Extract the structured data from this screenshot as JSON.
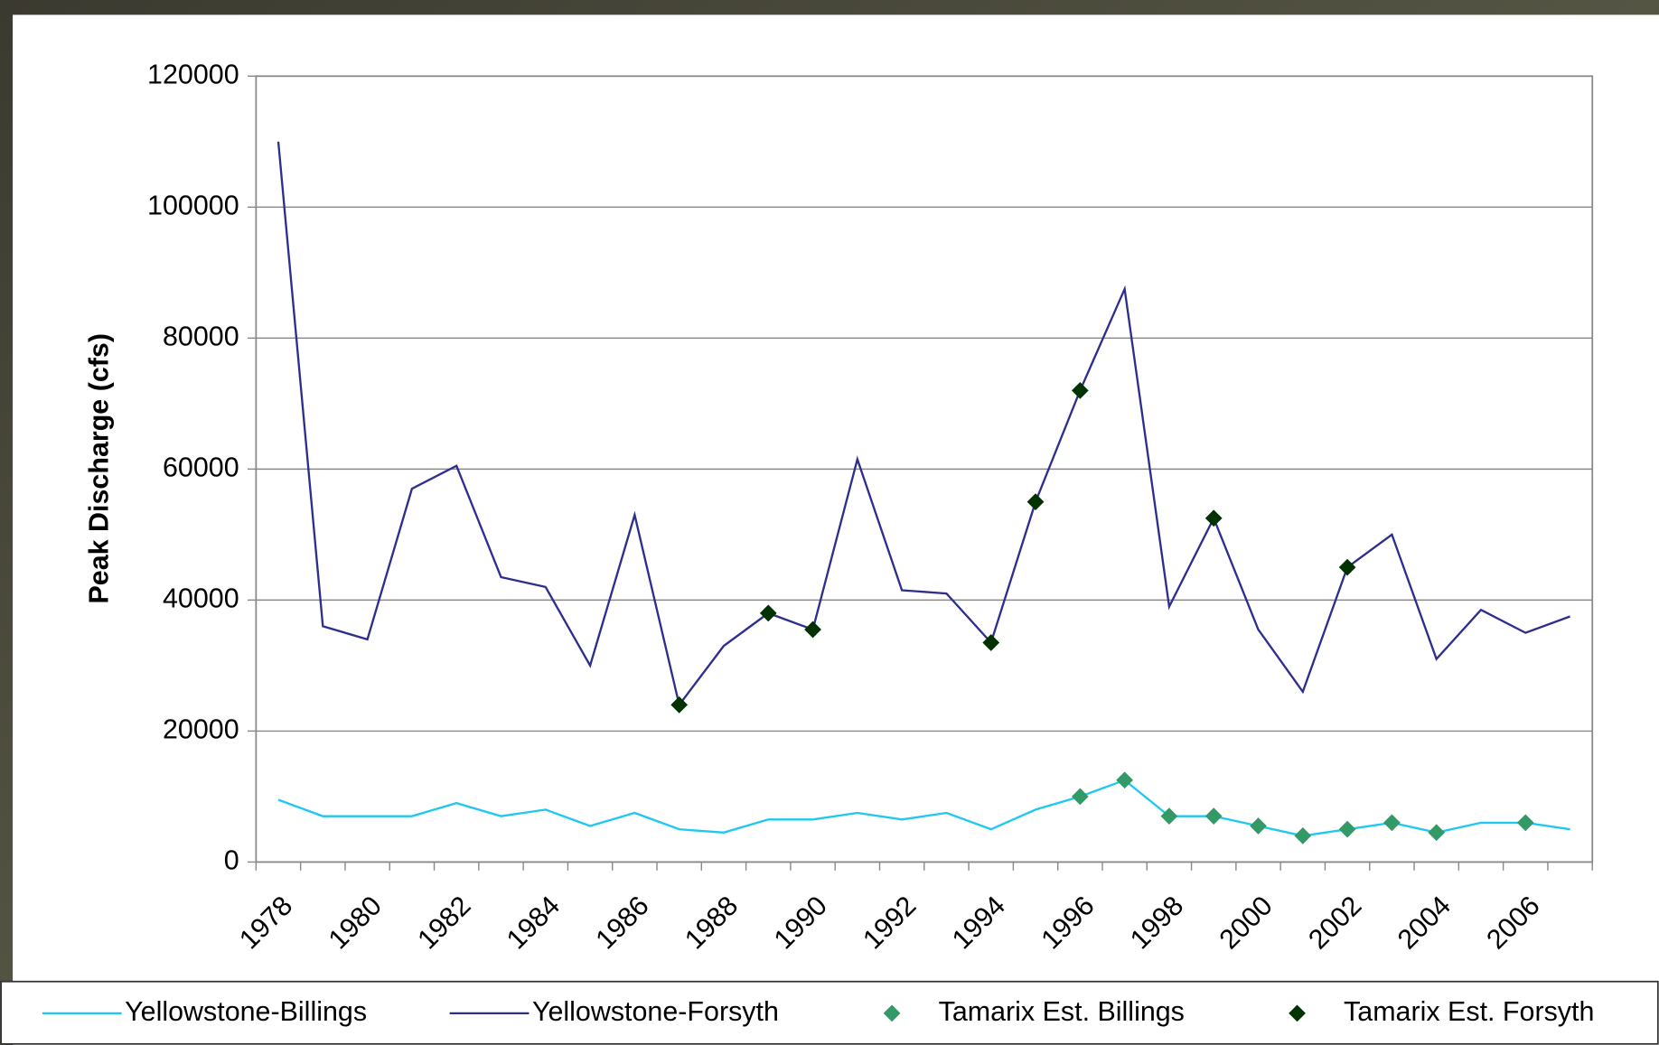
{
  "chart_data": {
    "type": "line",
    "y_label": "Peak Discharge (cfs)",
    "categories": [
      "1978",
      null,
      "1980",
      null,
      "1982",
      null,
      "1984",
      null,
      "1986",
      null,
      "1988",
      null,
      "1990",
      null,
      "1992",
      null,
      "1994",
      null,
      "1996",
      null,
      "1998",
      null,
      "2000",
      null,
      "2002",
      null,
      "2004",
      null,
      "2006",
      null
    ],
    "ylim": [
      0,
      120000
    ],
    "yticks": [
      0,
      20000,
      40000,
      60000,
      80000,
      100000,
      120000
    ],
    "grid": true,
    "series": [
      {
        "name": "Yellowstone-Billings",
        "color": "#1ec8f0",
        "style": "line",
        "values": [
          9500,
          7000,
          7000,
          7000,
          9000,
          7000,
          8000,
          5500,
          7500,
          5000,
          4500,
          6500,
          6500,
          7500,
          6500,
          7500,
          5000,
          8000,
          10000,
          12500,
          7000,
          7000,
          5500,
          4000,
          5000,
          6000,
          4500,
          6000,
          6000,
          5000
        ]
      },
      {
        "name": "Yellowstone-Forsyth",
        "color": "#2e2e8f",
        "style": "line",
        "values": [
          110000,
          36000,
          34000,
          57000,
          60500,
          43500,
          42000,
          30000,
          53000,
          24000,
          33000,
          38000,
          35500,
          61500,
          41500,
          41000,
          33500,
          55000,
          72000,
          87500,
          39000,
          52500,
          35500,
          26000,
          45000,
          50000,
          31000,
          38500,
          35000,
          37500
        ]
      },
      {
        "name": "Tamarix Est. Billings",
        "color": "#339966",
        "style": "marker",
        "values": [
          null,
          null,
          null,
          null,
          null,
          null,
          null,
          null,
          null,
          null,
          null,
          null,
          null,
          null,
          null,
          null,
          null,
          null,
          10000,
          12500,
          7000,
          7000,
          5500,
          4000,
          5000,
          6000,
          4500,
          null,
          6000,
          null
        ]
      },
      {
        "name": "Tamarix Est. Forsyth",
        "color": "#003300",
        "style": "marker",
        "values": [
          null,
          null,
          null,
          null,
          null,
          null,
          null,
          null,
          null,
          24000,
          null,
          38000,
          35500,
          null,
          null,
          null,
          33500,
          55000,
          72000,
          null,
          null,
          52500,
          null,
          null,
          45000,
          null,
          null,
          null,
          null,
          null
        ]
      }
    ]
  }
}
